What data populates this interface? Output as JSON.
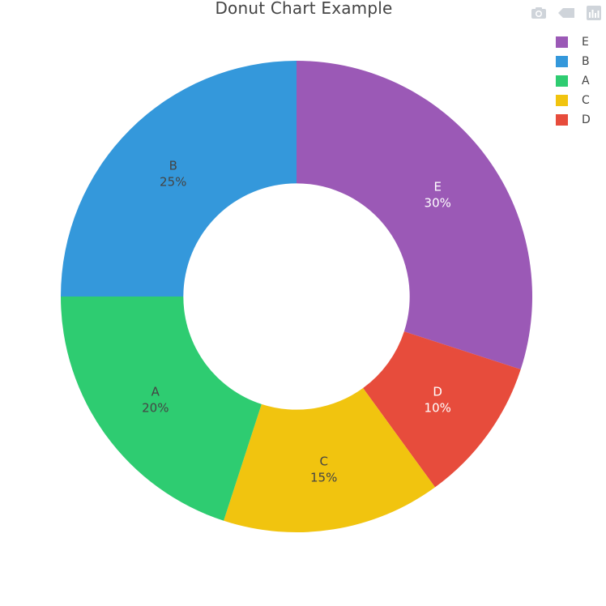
{
  "title": "Donut Chart Example",
  "modebar": {
    "icons": [
      "camera-icon",
      "tag-icon",
      "plotly-logo-icon"
    ],
    "icon_color": "#cfd4da"
  },
  "legend": {
    "placement": "top-right",
    "items": [
      {
        "label": "E",
        "color": "#9b59b6"
      },
      {
        "label": "B",
        "color": "#3498db"
      },
      {
        "label": "A",
        "color": "#2ecc71"
      },
      {
        "label": "C",
        "color": "#f1c40f"
      },
      {
        "label": "D",
        "color": "#e74c3c"
      }
    ]
  },
  "chart_data": {
    "type": "pie",
    "hole": 0.48,
    "title": "Donut Chart Example",
    "categories": [
      "E",
      "D",
      "C",
      "A",
      "B"
    ],
    "values": [
      30,
      10,
      15,
      20,
      25
    ],
    "colors": [
      "#9b59b6",
      "#e74c3c",
      "#f1c40f",
      "#2ecc71",
      "#3498db"
    ],
    "percent_labels": [
      "30%",
      "10%",
      "15%",
      "20%",
      "25%"
    ],
    "label_colors": [
      "#ffffff",
      "#ffffff",
      "#444444",
      "#444444",
      "#444444"
    ],
    "sort": "clockwise from top"
  }
}
